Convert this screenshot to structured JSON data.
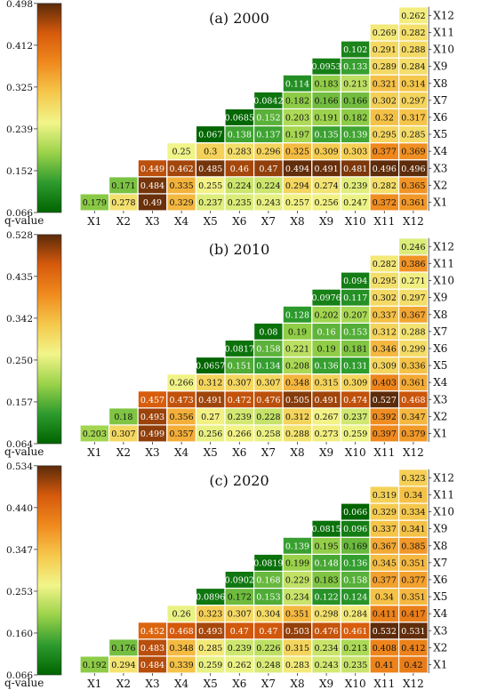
{
  "scale_label": "q-value",
  "palette": [
    "#006400",
    "#2e9b2e",
    "#9bd24a",
    "#f2f58a",
    "#f5c84c",
    "#f08a1e",
    "#d65a0c",
    "#5a2a0a"
  ],
  "chart_data": [
    {
      "type": "heatmap",
      "title": "(a) 2000",
      "x_labels": [
        "X1",
        "X2",
        "X3",
        "X4",
        "X5",
        "X6",
        "X7",
        "X8",
        "X9",
        "X10",
        "X11",
        "X12"
      ],
      "y_labels": [
        "X1",
        "X2",
        "X3",
        "X4",
        "X5",
        "X6",
        "X7",
        "X8",
        "X9",
        "X10",
        "X11",
        "X12"
      ],
      "colorbar_ticks": [
        "0.066",
        "0.152",
        "0.239",
        "0.325",
        "0.412",
        "0.498"
      ],
      "vmin": 0.066,
      "vmax": 0.498,
      "rows": [
        [
          "0.179",
          "0.278",
          "0.49",
          "0.329",
          "0.237",
          "0.235",
          "0.243",
          "0.257",
          "0.256",
          "0.247",
          "0.372",
          "0.361"
        ],
        [
          "0.171",
          "0.484",
          "0.335",
          "0.255",
          "0.224",
          "0.224",
          "0.294",
          "0.274",
          "0.239",
          "0.282",
          "0.365"
        ],
        [
          "0.449",
          "0.462",
          "0.485",
          "0.46",
          "0.47",
          "0.494",
          "0.491",
          "0.481",
          "0.496",
          "0.496"
        ],
        [
          "0.25",
          "0.3",
          "0.283",
          "0.296",
          "0.325",
          "0.309",
          "0.303",
          "0.377",
          "0.369"
        ],
        [
          "0.067",
          "0.138",
          "0.137",
          "0.197",
          "0.135",
          "0.139",
          "0.295",
          "0.285"
        ],
        [
          "0.0685",
          "0.152",
          "0.203",
          "0.191",
          "0.182",
          "0.32",
          "0.317"
        ],
        [
          "0.0842",
          "0.182",
          "0.166",
          "0.166",
          "0.302",
          "0.297"
        ],
        [
          "0.114",
          "0.183",
          "0.213",
          "0.321",
          "0.314"
        ],
        [
          "0.0953",
          "0.133",
          "0.289",
          "0.284"
        ],
        [
          "0.102",
          "0.291",
          "0.288"
        ],
        [
          "0.269",
          "0.282"
        ],
        [
          "0.262"
        ]
      ]
    },
    {
      "type": "heatmap",
      "title": "(b) 2010",
      "x_labels": [
        "X1",
        "X2",
        "X3",
        "X4",
        "X5",
        "X6",
        "X7",
        "X8",
        "X9",
        "X10",
        "X11",
        "X12"
      ],
      "y_labels": [
        "X1",
        "X2",
        "X3",
        "X4",
        "X5",
        "X6",
        "X7",
        "X8",
        "X9",
        "X10",
        "X11",
        "X12"
      ],
      "colorbar_ticks": [
        "0.064",
        "0.157",
        "0.250",
        "0.342",
        "0.435",
        "0.528"
      ],
      "vmin": 0.064,
      "vmax": 0.528,
      "rows": [
        [
          "0.203",
          "0.307",
          "0.499",
          "0.357",
          "0.256",
          "0.266",
          "0.258",
          "0.288",
          "0.273",
          "0.259",
          "0.397",
          "0.379"
        ],
        [
          "0.18",
          "0.493",
          "0.356",
          "0.27",
          "0.239",
          "0.228",
          "0.312",
          "0.267",
          "0.237",
          "0.392",
          "0.347"
        ],
        [
          "0.457",
          "0.473",
          "0.491",
          "0.472",
          "0.476",
          "0.505",
          "0.491",
          "0.474",
          "0.527",
          "0.468"
        ],
        [
          "0.266",
          "0.312",
          "0.307",
          "0.307",
          "0.348",
          "0.315",
          "0.309",
          "0.403",
          "0.361"
        ],
        [
          "0.0657",
          "0.151",
          "0.134",
          "0.208",
          "0.136",
          "0.131",
          "0.309",
          "0.336"
        ],
        [
          "0.0817",
          "0.158",
          "0.221",
          "0.19",
          "0.181",
          "0.346",
          "0.299"
        ],
        [
          "0.08",
          "0.19",
          "0.16",
          "0.153",
          "0.312",
          "0.288"
        ],
        [
          "0.128",
          "0.202",
          "0.207",
          "0.337",
          "0.367"
        ],
        [
          "0.0976",
          "0.117",
          "0.302",
          "0.297"
        ],
        [
          "0.094",
          "0.295",
          "0.271"
        ],
        [
          "0.282",
          "0.386"
        ],
        [
          "0.246"
        ]
      ]
    },
    {
      "type": "heatmap",
      "title": "(c) 2020",
      "x_labels": [
        "X1",
        "X2",
        "X3",
        "X4",
        "X5",
        "X6",
        "X7",
        "X8",
        "X9",
        "X10",
        "X11",
        "X12"
      ],
      "y_labels": [
        "X1",
        "X2",
        "X3",
        "X4",
        "X5",
        "X6",
        "X7",
        "X8",
        "X9",
        "X10",
        "X11",
        "X12"
      ],
      "colorbar_ticks": [
        "0.066",
        "0.160",
        "0.253",
        "0.347",
        "0.440",
        "0.534"
      ],
      "vmin": 0.066,
      "vmax": 0.534,
      "rows": [
        [
          "0.192",
          "0.294",
          "0.484",
          "0.339",
          "0.259",
          "0.262",
          "0.248",
          "0.283",
          "0.243",
          "0.235",
          "0.41",
          "0.42"
        ],
        [
          "0.176",
          "0.483",
          "0.348",
          "0.285",
          "0.239",
          "0.226",
          "0.315",
          "0.234",
          "0.213",
          "0.408",
          "0.412"
        ],
        [
          "0.452",
          "0.468",
          "0.493",
          "0.47",
          "0.47",
          "0.503",
          "0.476",
          "0.461",
          "0.532",
          "0.531"
        ],
        [
          "0.26",
          "0.323",
          "0.307",
          "0.304",
          "0.351",
          "0.298",
          "0.284",
          "0.411",
          "0.417"
        ],
        [
          "0.0896",
          "0.172",
          "0.153",
          "0.234",
          "0.122",
          "0.124",
          "0.34",
          "0.351"
        ],
        [
          "0.0902",
          "0.168",
          "0.229",
          "0.183",
          "0.158",
          "0.377",
          "0.377"
        ],
        [
          "0.0819",
          "0.199",
          "0.148",
          "0.136",
          "0.345",
          "0.351"
        ],
        [
          "0.139",
          "0.195",
          "0.169",
          "0.367",
          "0.385"
        ],
        [
          "0.0815",
          "0.096",
          "0.337",
          "0.341"
        ],
        [
          "0.066",
          "0.329",
          "0.334"
        ],
        [
          "0.319",
          "0.34"
        ],
        [
          "0.323"
        ]
      ]
    }
  ]
}
